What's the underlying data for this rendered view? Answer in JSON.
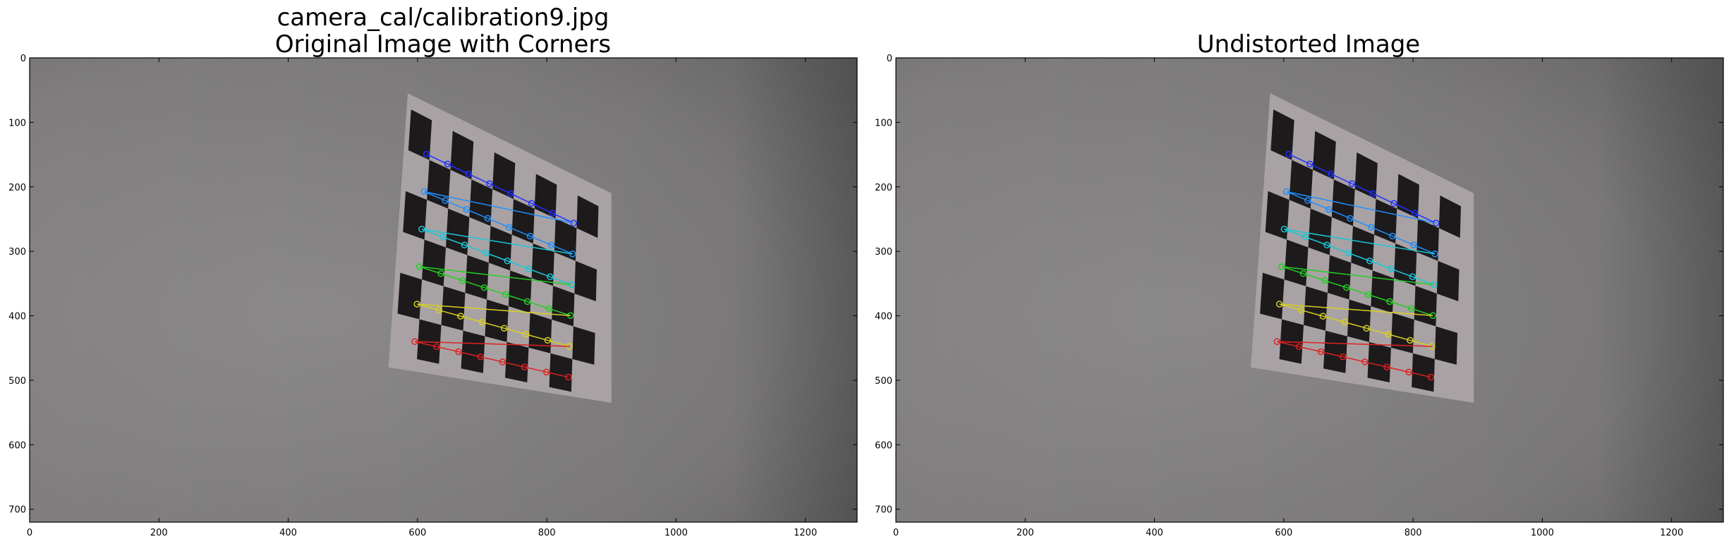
{
  "figure": {
    "panels": [
      {
        "title_lines": [
          "camera_cal/calibration9.jpg",
          "Original Image with Corners"
        ],
        "x_ticks": [
          "0",
          "200",
          "400",
          "600",
          "800",
          "1000",
          "1200"
        ],
        "y_ticks": [
          "0",
          "100",
          "200",
          "300",
          "400",
          "500",
          "600",
          "700"
        ],
        "xlim": [
          0,
          1280
        ],
        "ylim": [
          720,
          0
        ],
        "show_corners": true
      },
      {
        "title_lines": [
          "Undistorted Image"
        ],
        "x_ticks": [
          "0",
          "200",
          "400",
          "600",
          "800",
          "1000",
          "1200"
        ],
        "y_ticks": [
          "0",
          "100",
          "200",
          "300",
          "400",
          "500",
          "600",
          "700"
        ],
        "xlim": [
          0,
          1280
        ],
        "ylim": [
          720,
          0
        ],
        "show_corners": true
      }
    ],
    "corner_row_colors": [
      "#2030ff",
      "#1e8fff",
      "#18c8d8",
      "#22d022",
      "#d8d020",
      "#e02020"
    ]
  }
}
